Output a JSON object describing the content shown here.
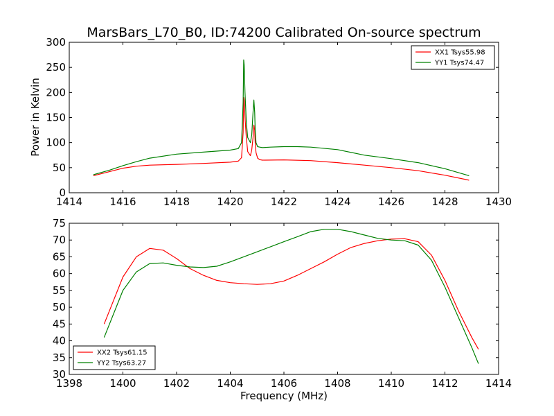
{
  "chart_data": [
    {
      "type": "line",
      "title": "MarsBars_L70_B0, ID:74200 Calibrated On-source spectrum",
      "xlabel": "",
      "ylabel": "Power in Kelvin",
      "xlim": [
        1414,
        1430
      ],
      "ylim": [
        0,
        300
      ],
      "xticks": [
        1414,
        1416,
        1418,
        1420,
        1422,
        1424,
        1426,
        1428,
        1430
      ],
      "yticks": [
        0,
        50,
        100,
        150,
        200,
        250,
        300
      ],
      "grid": false,
      "legend_position": "top-right",
      "series": [
        {
          "name": "XX1 Tsys55.98",
          "color": "#ff0000",
          "x": [
            1414.9,
            1415.5,
            1416,
            1416.5,
            1417,
            1418,
            1419,
            1420,
            1420.3,
            1420.42,
            1420.48,
            1420.5,
            1420.52,
            1420.55,
            1420.6,
            1420.65,
            1420.75,
            1420.8,
            1420.85,
            1420.88,
            1420.91,
            1420.93,
            1420.96,
            1421.02,
            1421.1,
            1421.2,
            1422,
            1423,
            1424,
            1425,
            1426,
            1427,
            1428,
            1428.9
          ],
          "values": [
            34,
            42,
            49,
            53,
            55,
            56.5,
            58.5,
            61,
            63,
            70,
            120,
            190,
            185,
            150,
            110,
            82,
            74,
            85,
            110,
            135,
            125,
            100,
            80,
            69,
            66,
            65,
            65.5,
            64,
            60,
            55,
            50,
            44,
            35,
            25
          ]
        },
        {
          "name": "YY1 Tsys74.47",
          "color": "#008000",
          "x": [
            1414.9,
            1415.5,
            1416,
            1416.5,
            1417,
            1418,
            1419,
            1420,
            1420.3,
            1420.42,
            1420.48,
            1420.5,
            1420.52,
            1420.55,
            1420.6,
            1420.65,
            1420.75,
            1420.8,
            1420.85,
            1420.88,
            1420.91,
            1420.93,
            1420.96,
            1421.02,
            1421.1,
            1421.2,
            1421.5,
            1422,
            1422.5,
            1423,
            1424,
            1425,
            1426,
            1427,
            1428,
            1428.9
          ],
          "values": [
            36,
            45,
            54,
            62,
            69,
            77,
            81,
            85,
            88,
            100,
            180,
            265,
            255,
            200,
            140,
            110,
            100,
            115,
            160,
            185,
            160,
            125,
            100,
            92,
            91,
            90,
            91,
            92,
            92,
            91,
            86,
            75,
            68,
            60,
            48,
            34
          ]
        }
      ]
    },
    {
      "type": "line",
      "title": "",
      "xlabel": "Frequency (MHz)",
      "ylabel": "",
      "xlim": [
        1398,
        1414
      ],
      "ylim": [
        30,
        75
      ],
      "xticks": [
        1398,
        1400,
        1402,
        1404,
        1406,
        1408,
        1410,
        1412,
        1414
      ],
      "yticks": [
        30,
        35,
        40,
        45,
        50,
        55,
        60,
        65,
        70,
        75
      ],
      "grid": false,
      "legend_position": "bottom-left",
      "series": [
        {
          "name": "XX2 Tsys61.15",
          "color": "#ff0000",
          "x": [
            1399.3,
            1399.6,
            1400,
            1400.5,
            1401,
            1401.5,
            1402,
            1402.5,
            1403,
            1403.5,
            1404,
            1404.5,
            1405,
            1405.5,
            1406,
            1406.5,
            1407,
            1407.5,
            1408,
            1408.5,
            1409,
            1409.5,
            1410,
            1410.5,
            1411,
            1411.5,
            1412,
            1412.5,
            1413,
            1413.25
          ],
          "values": [
            45,
            51,
            59,
            65,
            67.5,
            67,
            64.5,
            61.5,
            59.5,
            58,
            57.3,
            57,
            56.8,
            57,
            57.8,
            59.5,
            61.5,
            63.5,
            65.8,
            67.8,
            69,
            69.8,
            70.3,
            70.4,
            69.5,
            65.5,
            58,
            49,
            41,
            37.5
          ]
        },
        {
          "name": "YY2 Tsys63.27",
          "color": "#008000",
          "x": [
            1399.3,
            1399.6,
            1400,
            1400.5,
            1401,
            1401.5,
            1402,
            1402.5,
            1403,
            1403.5,
            1404,
            1404.5,
            1405,
            1405.5,
            1406,
            1406.5,
            1407,
            1407.5,
            1408,
            1408.5,
            1409,
            1409.5,
            1410,
            1410.5,
            1411,
            1411.5,
            1412,
            1412.5,
            1413,
            1413.25
          ],
          "values": [
            41,
            47,
            55,
            60.5,
            63,
            63.2,
            62.5,
            62,
            61.8,
            62.2,
            63.5,
            65,
            66.5,
            68,
            69.5,
            71,
            72.5,
            73.2,
            73.2,
            72.5,
            71.5,
            70.5,
            70,
            69.8,
            68.5,
            64,
            56,
            47,
            38,
            33.2
          ]
        }
      ]
    }
  ]
}
